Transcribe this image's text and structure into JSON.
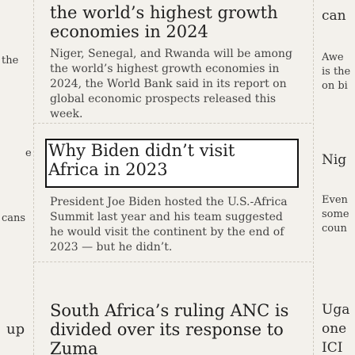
{
  "left_column": {
    "fragments": [
      "the",
      "e",
      "cans",
      "up"
    ]
  },
  "stories": [
    {
      "headline": "the world’s highest growth economies in 2024",
      "summary": "Niger, Senegal, and Rwanda will be among the world’s highest growth economies in 2024, the World Bank said in its report on global economic prospects released this week."
    },
    {
      "headline": "Why Biden didn’t visit Africa in 2023",
      "summary": "President Joe Biden hosted the U.S.-Africa Summit last year and his team suggested he would visit the continent by the end of 2023 — but he didn’t."
    },
    {
      "headline": "South Africa’s ruling ANC is divided over its response to Zuma",
      "summary": ""
    }
  ],
  "right_column": {
    "fragments": [
      "can",
      "Awe",
      "is the",
      "on bi",
      "Nig",
      "Even",
      "some",
      "coun",
      "Uga",
      "one",
      "ICI"
    ]
  }
}
